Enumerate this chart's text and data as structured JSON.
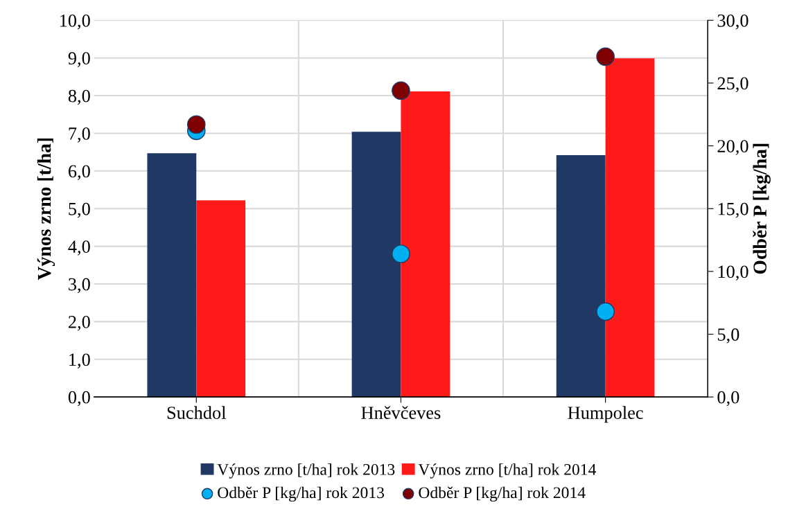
{
  "chart_data": {
    "type": "bar",
    "categories": [
      "Suchdol",
      "Hněvčeves",
      "Humpolec"
    ],
    "ylabel": "Výnos zrno [t/ha]",
    "y2label": "Odběr P [kg/ha]",
    "series": [
      {
        "name": "Výnos zrno [t/ha] rok 2013",
        "color": "#203864",
        "values": [
          6.47,
          7.04,
          6.42
        ]
      },
      {
        "name": "Výnos zrno [t/ha] rok 2014",
        "color": "#ff1a1a",
        "values": [
          5.22,
          8.11,
          8.99
        ]
      },
      {
        "name": "Odběr P [kg/ha] rok 2013",
        "type": "scatter",
        "axis": "y2",
        "color": "#00b0f0",
        "x": [
          "Suchdol",
          "Hněvčeves",
          "Humpolec"
        ],
        "values": [
          21.2,
          11.4,
          6.8
        ]
      },
      {
        "name": "Odběr P [kg/ha] rok 2014",
        "type": "scatter",
        "axis": "y2",
        "color": "#7f0000",
        "x": [
          "Suchdol",
          "Hněvčeves",
          "Humpolec"
        ],
        "values": [
          21.7,
          24.4,
          27.1
        ]
      }
    ],
    "ylim": [
      0,
      10
    ],
    "yticks": [
      {
        "value": 0,
        "label": "0,0"
      },
      {
        "value": 1,
        "label": "1,0"
      },
      {
        "value": 2,
        "label": "2,0"
      },
      {
        "value": 3,
        "label": "3,0"
      },
      {
        "value": 4,
        "label": "4,0"
      },
      {
        "value": 5,
        "label": "5,0"
      },
      {
        "value": 6,
        "label": "6,0"
      },
      {
        "value": 7,
        "label": "7,0"
      },
      {
        "value": 8,
        "label": "8,0"
      },
      {
        "value": 9,
        "label": "9,0"
      },
      {
        "value": 10,
        "label": "10,0"
      }
    ],
    "y2lim": [
      0,
      30
    ],
    "y2ticks": [
      {
        "value": 0,
        "label": "0,0"
      },
      {
        "value": 5,
        "label": "5,0"
      },
      {
        "value": 10,
        "label": "10,0"
      },
      {
        "value": 15,
        "label": "15,0"
      },
      {
        "value": 20,
        "label": "20,0"
      },
      {
        "value": 25,
        "label": "25,0"
      },
      {
        "value": 30,
        "label": "30,0"
      }
    ],
    "grid": true,
    "legend": "bottom",
    "marker": "circle"
  }
}
